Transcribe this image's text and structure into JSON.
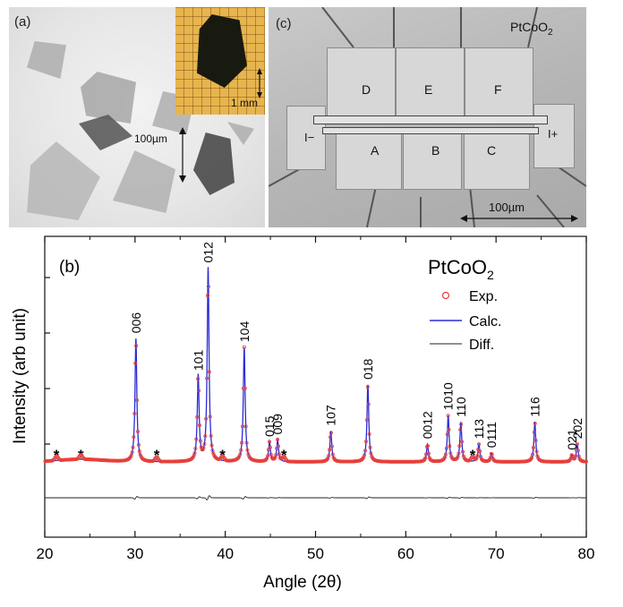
{
  "panel_a": {
    "label": "(a)",
    "scale_label": "100µm",
    "inset_scale_label": "1 mm"
  },
  "panel_c": {
    "label": "(c)",
    "compound": "PtCoO",
    "compound_sub": "2",
    "pads": [
      "D",
      "E",
      "F",
      "A",
      "B",
      "C"
    ],
    "current_minus": "I−",
    "current_plus": "I+",
    "scale_label": "100µm"
  },
  "chart_data": {
    "type": "line",
    "panel_label": "(b)",
    "title": "PtCoO",
    "title_sub": "2",
    "xlabel": "Angle (2θ)",
    "ylabel": "Intensity (arb unit)",
    "xlim": [
      20,
      80
    ],
    "xticks": [
      20,
      30,
      40,
      50,
      60,
      70,
      80
    ],
    "legend_position": "top-right",
    "series": [
      {
        "name": "Exp.",
        "color": "#e8403a",
        "style": "open-circles"
      },
      {
        "name": "Calc.",
        "color": "#2b2bd6",
        "style": "line"
      },
      {
        "name": "Diff.",
        "color": "#222222",
        "style": "line"
      }
    ],
    "baseline": 0.05,
    "peaks": [
      {
        "x": 30.1,
        "height": 0.56,
        "label": "006"
      },
      {
        "x": 37.0,
        "height": 0.39,
        "label": "101"
      },
      {
        "x": 38.1,
        "height": 0.88,
        "label": "012"
      },
      {
        "x": 42.1,
        "height": 0.52,
        "label": "104"
      },
      {
        "x": 44.9,
        "height": 0.09,
        "label": "015"
      },
      {
        "x": 45.8,
        "height": 0.1,
        "label": "009"
      },
      {
        "x": 51.7,
        "height": 0.14,
        "label": "107"
      },
      {
        "x": 55.8,
        "height": 0.35,
        "label": "018"
      },
      {
        "x": 62.4,
        "height": 0.08,
        "label": "0012"
      },
      {
        "x": 64.7,
        "height": 0.21,
        "label": "1010"
      },
      {
        "x": 66.1,
        "height": 0.18,
        "label": "110"
      },
      {
        "x": 68.1,
        "height": 0.08,
        "label": "113"
      },
      {
        "x": 69.5,
        "height": 0.04,
        "label": "0111"
      },
      {
        "x": 74.3,
        "height": 0.18,
        "label": "116"
      },
      {
        "x": 78.4,
        "height": 0.03,
        "label": "021"
      },
      {
        "x": 79.0,
        "height": 0.08,
        "label": "202"
      }
    ],
    "impurity_markers": [
      {
        "x": 21.3,
        "label": "*"
      },
      {
        "x": 24.0,
        "label": "*"
      },
      {
        "x": 32.4,
        "label": "*"
      },
      {
        "x": 39.7,
        "label": "*"
      },
      {
        "x": 46.5,
        "label": "*"
      },
      {
        "x": 67.4,
        "label": "*"
      }
    ]
  }
}
